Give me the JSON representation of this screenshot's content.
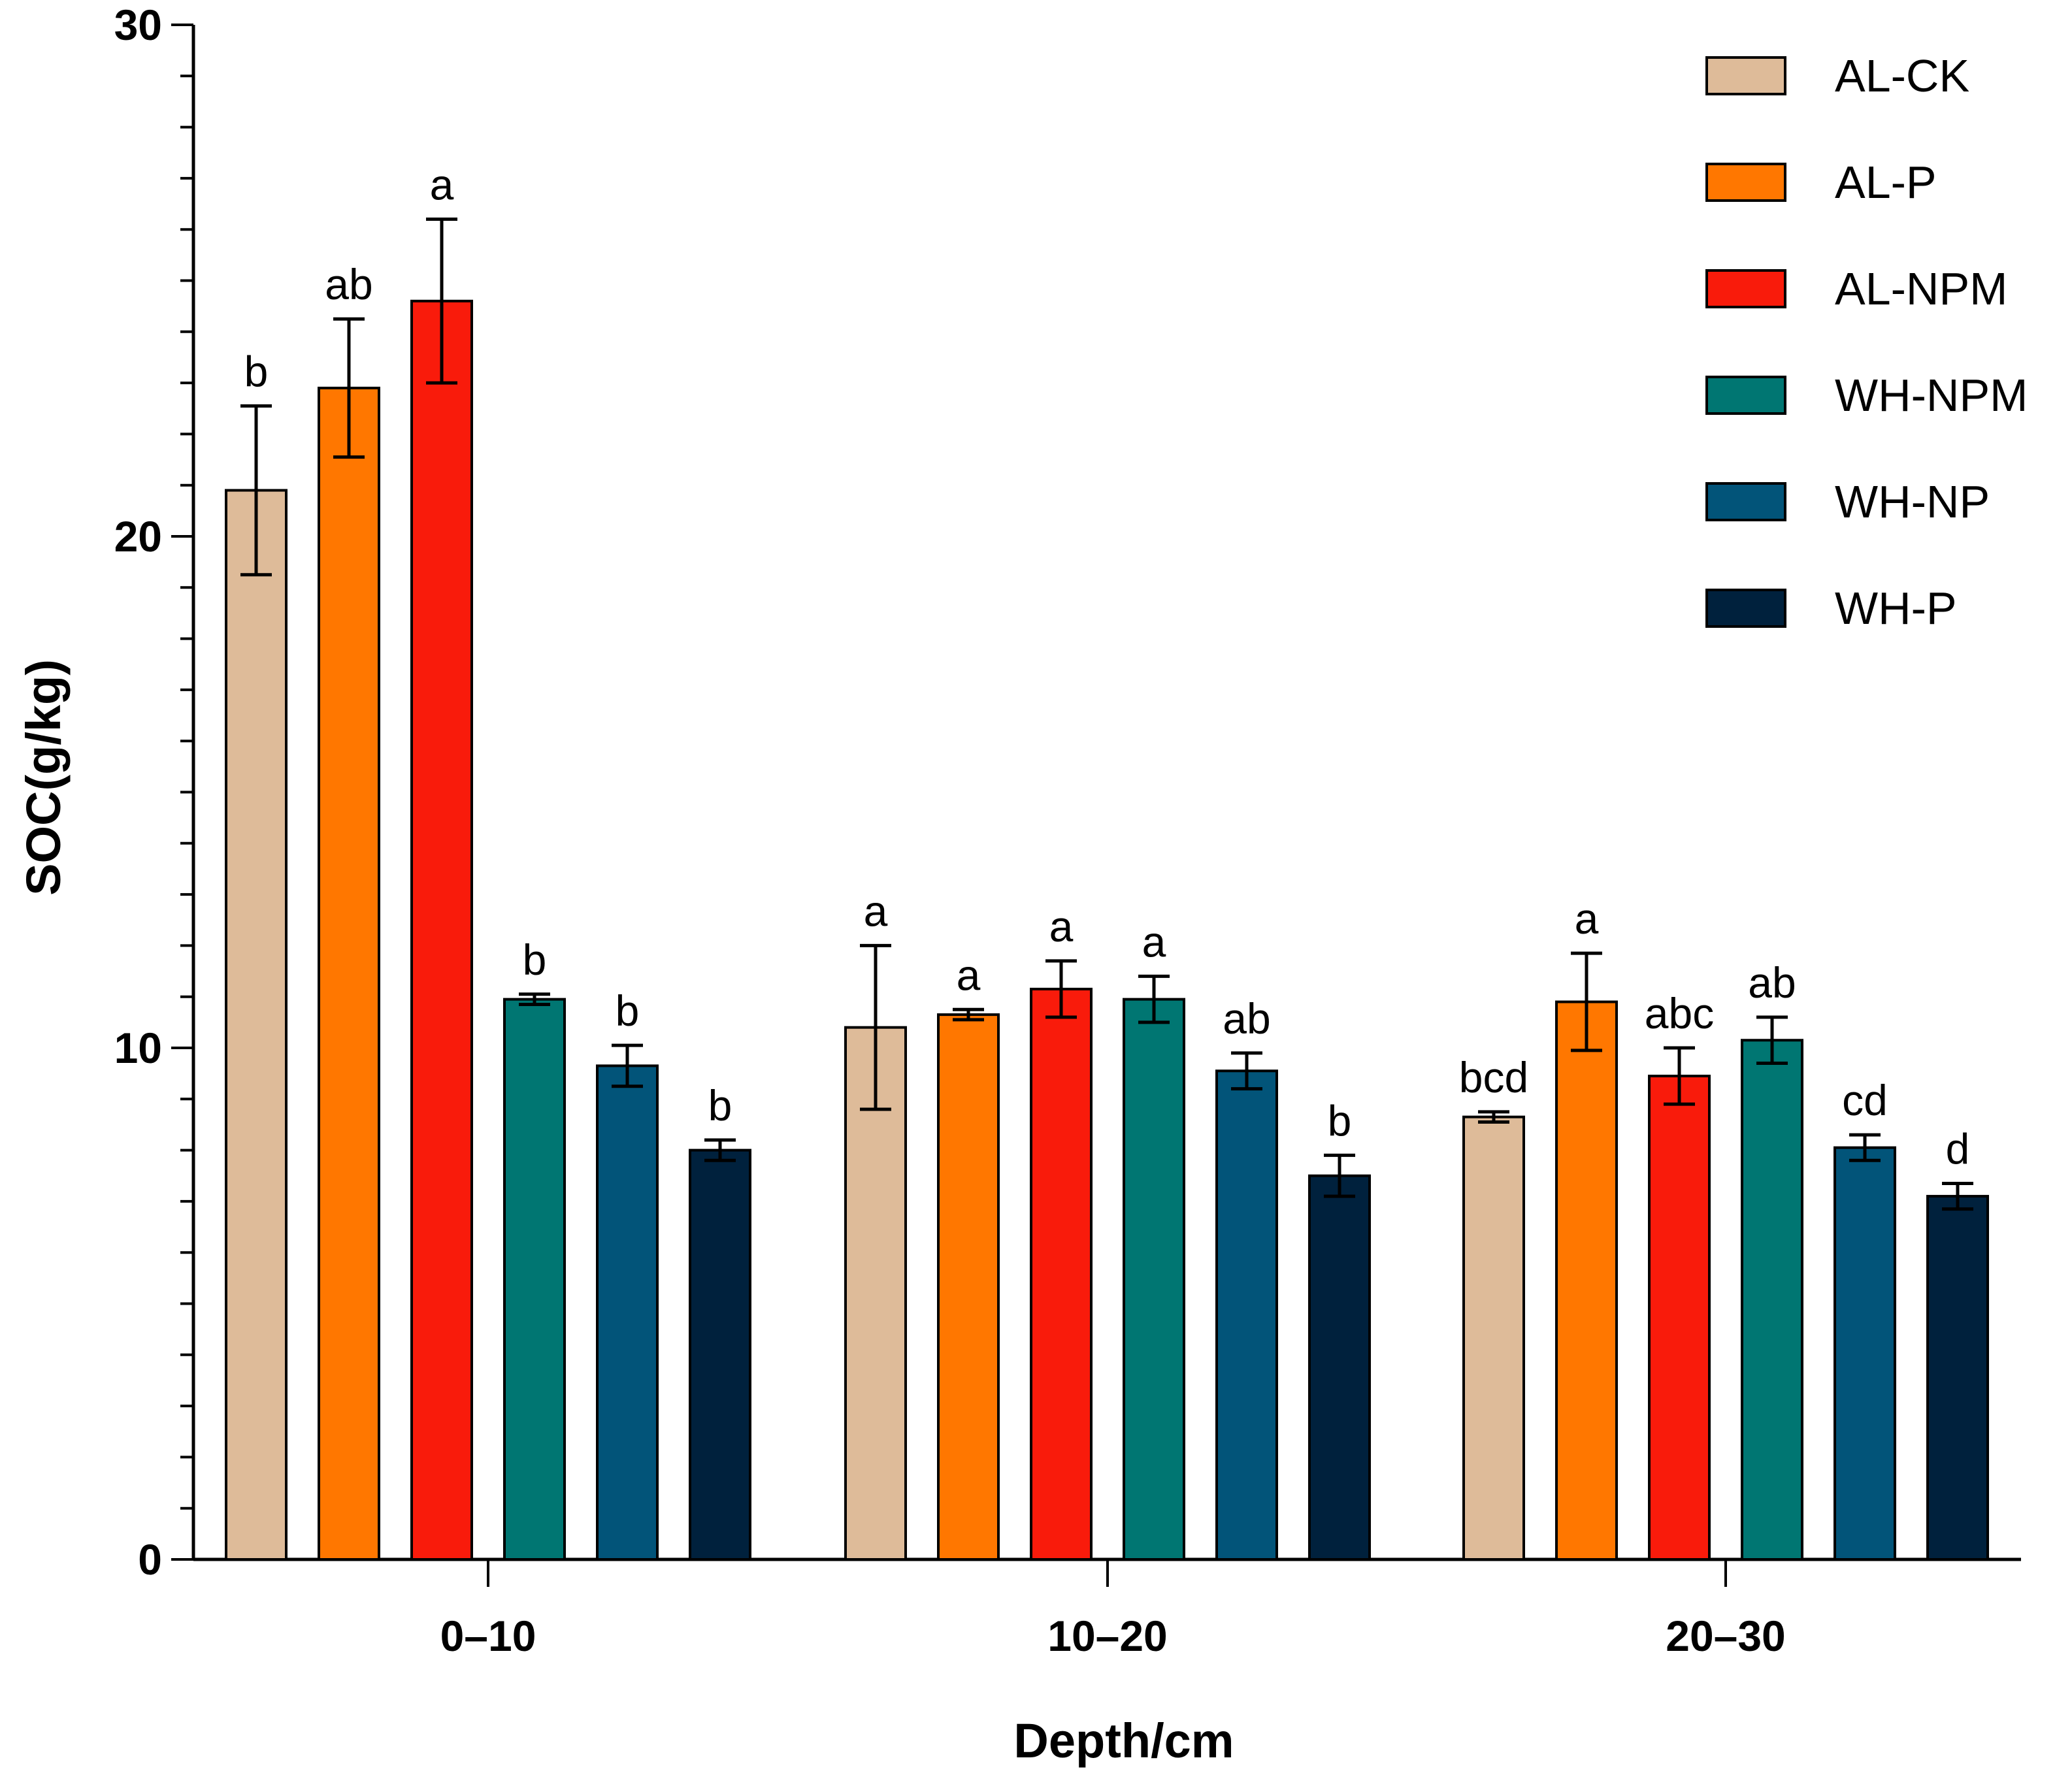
{
  "chart_data": {
    "type": "bar",
    "title": "",
    "xlabel": "Depth/cm",
    "ylabel": "SOC(g/kg)",
    "ylim": [
      0,
      30
    ],
    "yticks": [
      "0",
      "10",
      "20",
      "30"
    ],
    "categories": [
      "0–10",
      "10–20",
      "20–30"
    ],
    "grid": false,
    "legend_position": "top-right",
    "series": [
      {
        "name": "AL-CK",
        "color": "#DEBB99",
        "values": [
          20.9,
          10.4,
          8.65
        ],
        "errors": [
          1.65,
          1.6,
          0.1
        ],
        "labels": [
          "b",
          "a",
          "bcd"
        ]
      },
      {
        "name": "AL-P",
        "color": "#FF7700",
        "values": [
          22.9,
          10.65,
          10.9
        ],
        "errors": [
          1.35,
          0.1,
          0.95
        ],
        "labels": [
          "ab",
          "a",
          "a"
        ]
      },
      {
        "name": "AL-NPM",
        "color": "#F91B0B",
        "values": [
          24.6,
          11.15,
          9.45
        ],
        "errors": [
          1.6,
          0.55,
          0.55
        ],
        "labels": [
          "a",
          "a",
          "abc"
        ]
      },
      {
        "name": "WH-NPM",
        "color": "#007672",
        "values": [
          10.95,
          10.95,
          10.15
        ],
        "errors": [
          0.1,
          0.45,
          0.45
        ],
        "labels": [
          "b",
          "a",
          "ab"
        ]
      },
      {
        "name": "WH-NP",
        "color": "#025479",
        "values": [
          9.65,
          9.55,
          8.05
        ],
        "errors": [
          0.4,
          0.35,
          0.25
        ],
        "labels": [
          "b",
          "ab",
          "cd"
        ]
      },
      {
        "name": "WH-P",
        "color": "#00213D",
        "values": [
          8.0,
          7.5,
          7.1
        ],
        "errors": [
          0.2,
          0.4,
          0.25
        ],
        "labels": [
          "b",
          "b",
          "d"
        ]
      }
    ]
  }
}
